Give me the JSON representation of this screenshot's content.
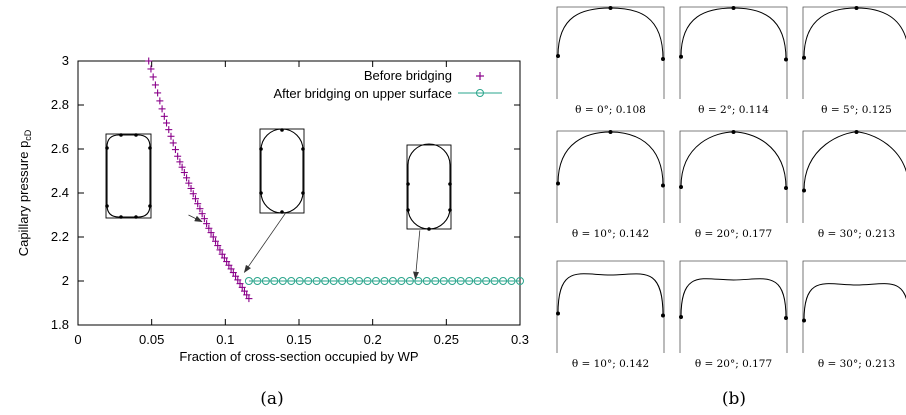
{
  "chart_data": [
    {
      "type": "scatter",
      "xlabel": "Fraction of cross-section occupied by WP",
      "ylabel": "Capillary pressure p",
      "ylabel_subscript": "cD",
      "xlim": [
        0,
        0.3
      ],
      "ylim": [
        1.8,
        3.0
      ],
      "xticks": [
        0,
        0.05,
        0.1,
        0.15,
        0.2,
        0.25,
        0.3
      ],
      "xtick_labels": [
        "0",
        "0.05",
        "0.1",
        "0.15",
        "0.2",
        "0.25",
        "0.3"
      ],
      "yticks": [
        1.8,
        2.0,
        2.2,
        2.4,
        2.6,
        2.8,
        3.0
      ],
      "ytick_labels": [
        "1.8",
        "2",
        "2.2",
        "2.4",
        "2.6",
        "2.8",
        "3"
      ],
      "grid": false,
      "legend_position": "top-right",
      "series": [
        {
          "name": "Before bridging",
          "marker": "plus",
          "color": "#8a008a",
          "x_start": 0.048,
          "x_end": 0.116,
          "count": 46,
          "x": [
            0.048,
            0.058,
            0.068,
            0.078,
            0.088,
            0.098,
            0.108,
            0.116
          ],
          "y": [
            3.0,
            2.76,
            2.56,
            2.4,
            2.25,
            2.12,
            2.01,
            1.92
          ]
        },
        {
          "name": "After bridging on upper surface",
          "marker": "circle",
          "color": "#2aa58c",
          "x_start": 0.116,
          "x_end": 0.3,
          "count": 33,
          "y_const": 2.0
        }
      ],
      "insets": [
        {
          "shape": "rounded-rect",
          "x": 0.035,
          "y": 2.48
        },
        {
          "shape": "stadium",
          "x": 0.14,
          "y": 2.49
        },
        {
          "shape": "bridged",
          "x": 0.235,
          "y": 2.38
        }
      ],
      "annotations": [
        {
          "from": [
            0.075,
            2.3
          ],
          "to": [
            0.084,
            2.27
          ]
        },
        {
          "from": [
            0.141,
            2.31
          ],
          "to": [
            0.113,
            2.04
          ]
        },
        {
          "from": [
            0.232,
            2.23
          ],
          "to": [
            0.229,
            2.01
          ]
        }
      ],
      "caption": "(a)"
    },
    {
      "type": "diagram",
      "caption": "(b)",
      "panels": [
        {
          "label": "θ = 0°; 0.108",
          "theta": 0,
          "row": 0,
          "col": 0,
          "tip": true
        },
        {
          "label": "θ = 2°; 0.114",
          "theta": 2,
          "row": 0,
          "col": 1,
          "tip": true
        },
        {
          "label": "θ = 5°; 0.125",
          "theta": 5,
          "row": 0,
          "col": 2,
          "tip": true
        },
        {
          "label": "θ = 10°; 0.142",
          "theta": 10,
          "row": 1,
          "col": 0,
          "tip": true
        },
        {
          "label": "θ = 20°; 0.177",
          "theta": 20,
          "row": 1,
          "col": 1,
          "tip": true
        },
        {
          "label": "θ = 30°; 0.213",
          "theta": 30,
          "row": 1,
          "col": 2,
          "tip": true
        },
        {
          "label": "θ = 10°; 0.142",
          "theta": 10,
          "row": 2,
          "col": 0,
          "tip": false
        },
        {
          "label": "θ = 20°; 0.177",
          "theta": 20,
          "row": 2,
          "col": 1,
          "tip": false
        },
        {
          "label": "θ = 30°; 0.213",
          "theta": 30,
          "row": 2,
          "col": 2,
          "tip": false
        }
      ]
    }
  ]
}
